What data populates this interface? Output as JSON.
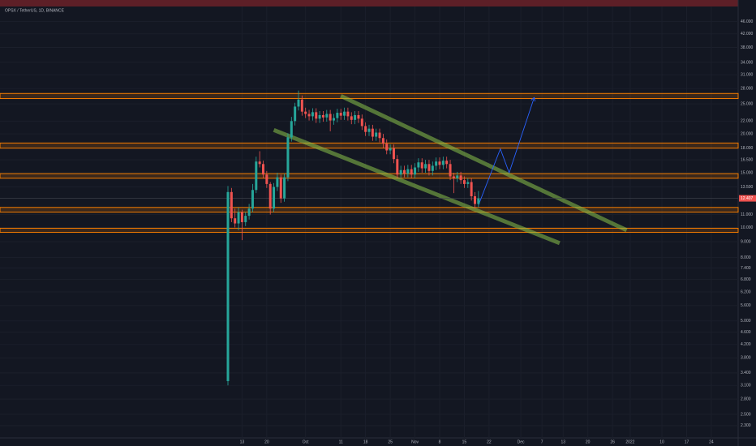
{
  "chart_data": {
    "type": "candlestick",
    "title": "OPSX / TetherUS, 1D, BINANCE",
    "log_scale": true,
    "grid": true,
    "up_color": "#26a69a",
    "down_color": "#ef5350",
    "ylim": [
      2.1,
      54
    ],
    "yticks": [
      {
        "value": 46,
        "label": "46.000"
      },
      {
        "value": 42,
        "label": "42.000"
      },
      {
        "value": 38,
        "label": "38.000"
      },
      {
        "value": 34,
        "label": "34.000"
      },
      {
        "value": 31,
        "label": "31.000"
      },
      {
        "value": 28,
        "label": "28.000"
      },
      {
        "value": 25,
        "label": "25.000"
      },
      {
        "value": 22,
        "label": "22.000"
      },
      {
        "value": 20,
        "label": "20.000"
      },
      {
        "value": 18,
        "label": "18.000"
      },
      {
        "value": 16.5,
        "label": "16.500"
      },
      {
        "value": 15,
        "label": "15.000"
      },
      {
        "value": 13.5,
        "label": "13.500"
      },
      {
        "value": 11,
        "label": "11.000"
      },
      {
        "value": 10,
        "label": "10.000"
      },
      {
        "value": 9,
        "label": "9.000"
      },
      {
        "value": 8,
        "label": "8.000"
      },
      {
        "value": 7.4,
        "label": "7.400"
      },
      {
        "value": 6.8,
        "label": "6.800"
      },
      {
        "value": 6.2,
        "label": "6.200"
      },
      {
        "value": 5.6,
        "label": "5.600"
      },
      {
        "value": 5,
        "label": "5.000"
      },
      {
        "value": 4.6,
        "label": "4.600"
      },
      {
        "value": 4.2,
        "label": "4.200"
      },
      {
        "value": 3.8,
        "label": "3.800"
      },
      {
        "value": 3.4,
        "label": "3.400"
      },
      {
        "value": 3.1,
        "label": "3.100"
      },
      {
        "value": 2.8,
        "label": "2.800"
      },
      {
        "value": 2.5,
        "label": "2.500"
      },
      {
        "value": 2.3,
        "label": "2.300"
      }
    ],
    "xticks": [
      {
        "value": 4,
        "label": "13"
      },
      {
        "value": 11,
        "label": "20"
      },
      {
        "value": 22,
        "label": "Oct"
      },
      {
        "value": 32,
        "label": "11"
      },
      {
        "value": 39,
        "label": "18"
      },
      {
        "value": 46,
        "label": "25"
      },
      {
        "value": 53,
        "label": "Nov"
      },
      {
        "value": 60,
        "label": "8"
      },
      {
        "value": 67,
        "label": "15"
      },
      {
        "value": 74,
        "label": "22"
      },
      {
        "value": 83,
        "label": "Dec"
      },
      {
        "value": 89,
        "label": "7"
      },
      {
        "value": 95,
        "label": "13"
      },
      {
        "value": 102,
        "label": "20"
      },
      {
        "value": 109,
        "label": "26"
      },
      {
        "value": 114,
        "label": "2022"
      },
      {
        "value": 123,
        "label": "10"
      },
      {
        "value": 130,
        "label": "17"
      },
      {
        "value": 137,
        "label": "24"
      }
    ],
    "ohlc": [
      [
        3.2,
        13.6,
        3.1,
        13.0
      ],
      [
        13.0,
        13.4,
        10.4,
        10.7
      ],
      [
        10.7,
        11.5,
        10.0,
        10.3
      ],
      [
        10.3,
        11.6,
        9.8,
        11.2
      ],
      [
        11.2,
        11.4,
        9.1,
        10.4
      ],
      [
        10.4,
        11.2,
        10.1,
        10.9
      ],
      [
        10.9,
        11.9,
        10.6,
        11.5
      ],
      [
        11.5,
        13.8,
        11.2,
        13.2
      ],
      [
        13.2,
        16.9,
        12.9,
        16.3
      ],
      [
        16.3,
        17.6,
        15.6,
        16.0
      ],
      [
        16.0,
        16.4,
        14.4,
        14.8
      ],
      [
        14.8,
        15.2,
        13.4,
        13.8
      ],
      [
        13.8,
        14.0,
        11.0,
        11.5
      ],
      [
        11.5,
        13.9,
        11.2,
        13.5
      ],
      [
        13.5,
        15.0,
        13.1,
        14.5
      ],
      [
        14.5,
        14.8,
        12.0,
        12.4
      ],
      [
        12.4,
        14.9,
        12.1,
        14.5
      ],
      [
        14.5,
        20.1,
        14.1,
        19.5
      ],
      [
        19.5,
        22.7,
        18.9,
        22.0
      ],
      [
        22.0,
        25.2,
        21.3,
        24.5
      ],
      [
        24.5,
        27.6,
        23.8,
        25.8
      ],
      [
        25.8,
        26.6,
        22.9,
        23.6
      ],
      [
        23.6,
        24.3,
        22.5,
        23.2
      ],
      [
        23.2,
        23.9,
        22.1,
        22.8
      ],
      [
        22.8,
        24.2,
        22.1,
        23.5
      ],
      [
        23.5,
        24.2,
        21.7,
        22.4
      ],
      [
        22.4,
        23.7,
        21.7,
        23.0
      ],
      [
        23.0,
        23.7,
        21.9,
        22.6
      ],
      [
        22.6,
        23.9,
        21.9,
        23.2
      ],
      [
        23.2,
        23.9,
        20.4,
        22.1
      ],
      [
        22.1,
        23.2,
        21.4,
        22.5
      ],
      [
        22.5,
        24.1,
        21.8,
        23.4
      ],
      [
        23.4,
        24.1,
        22.2,
        22.9
      ],
      [
        22.9,
        24.3,
        22.2,
        23.6
      ],
      [
        23.6,
        24.3,
        22.1,
        22.8
      ],
      [
        22.8,
        23.5,
        21.5,
        22.2
      ],
      [
        22.2,
        23.7,
        21.5,
        23.0
      ],
      [
        23.0,
        23.7,
        21.7,
        22.4
      ],
      [
        22.4,
        23.1,
        20.6,
        21.2
      ],
      [
        21.2,
        21.8,
        19.7,
        20.3
      ],
      [
        20.3,
        21.4,
        19.7,
        20.8
      ],
      [
        20.8,
        21.4,
        19.0,
        19.6
      ],
      [
        19.6,
        20.8,
        19.0,
        20.2
      ],
      [
        20.2,
        20.8,
        18.8,
        19.4
      ],
      [
        19.4,
        20.0,
        18.0,
        18.6
      ],
      [
        18.6,
        19.2,
        17.2,
        17.7
      ],
      [
        17.7,
        18.5,
        17.2,
        18.0
      ],
      [
        18.0,
        18.5,
        16.1,
        16.6
      ],
      [
        16.6,
        17.1,
        14.4,
        14.8
      ],
      [
        14.8,
        15.8,
        14.4,
        15.3
      ],
      [
        15.3,
        15.8,
        14.5,
        14.9
      ],
      [
        14.9,
        15.9,
        14.5,
        15.4
      ],
      [
        15.4,
        15.9,
        14.4,
        14.8
      ],
      [
        14.8,
        16.1,
        14.4,
        15.6
      ],
      [
        15.6,
        16.7,
        15.1,
        16.2
      ],
      [
        16.2,
        16.7,
        15.0,
        15.5
      ],
      [
        15.5,
        16.5,
        15.0,
        16.0
      ],
      [
        16.0,
        16.5,
        14.7,
        15.2
      ],
      [
        15.2,
        16.3,
        14.7,
        15.8
      ],
      [
        15.8,
        16.8,
        15.3,
        16.3
      ],
      [
        16.3,
        16.8,
        15.4,
        15.9
      ],
      [
        15.9,
        16.9,
        15.4,
        16.4
      ],
      [
        16.4,
        16.9,
        15.5,
        16.0
      ],
      [
        16.0,
        16.5,
        14.2,
        14.6
      ],
      [
        14.6,
        15.0,
        12.9,
        14.4
      ],
      [
        14.4,
        15.1,
        14.0,
        14.7
      ],
      [
        14.7,
        15.1,
        13.8,
        14.2
      ],
      [
        14.2,
        14.6,
        13.4,
        13.8
      ],
      [
        13.8,
        14.4,
        13.4,
        14.0
      ],
      [
        14.0,
        14.4,
        12.2,
        12.6
      ],
      [
        12.6,
        13.0,
        11.5,
        11.9
      ],
      [
        11.9,
        13.1,
        11.6,
        12.407
      ]
    ],
    "zones": [
      [
        26.0,
        27.0
      ],
      [
        18.0,
        18.7
      ],
      [
        14.4,
        14.9
      ],
      [
        11.2,
        11.6
      ],
      [
        9.64,
        9.94
      ]
    ],
    "zone_color": "#f57c00",
    "channel": [
      [
        [
          32,
          26.5
        ],
        [
          113,
          9.8
        ]
      ],
      [
        [
          13,
          20.6
        ],
        [
          94,
          8.9
        ]
      ]
    ],
    "channel_color": "#8bc34a",
    "projection": [
      [
        71,
        11.8
      ],
      [
        77.2,
        17.9
      ],
      [
        79.7,
        15.0
      ],
      [
        86.8,
        26.2
      ]
    ],
    "projection_color": "#2962ff"
  }
}
